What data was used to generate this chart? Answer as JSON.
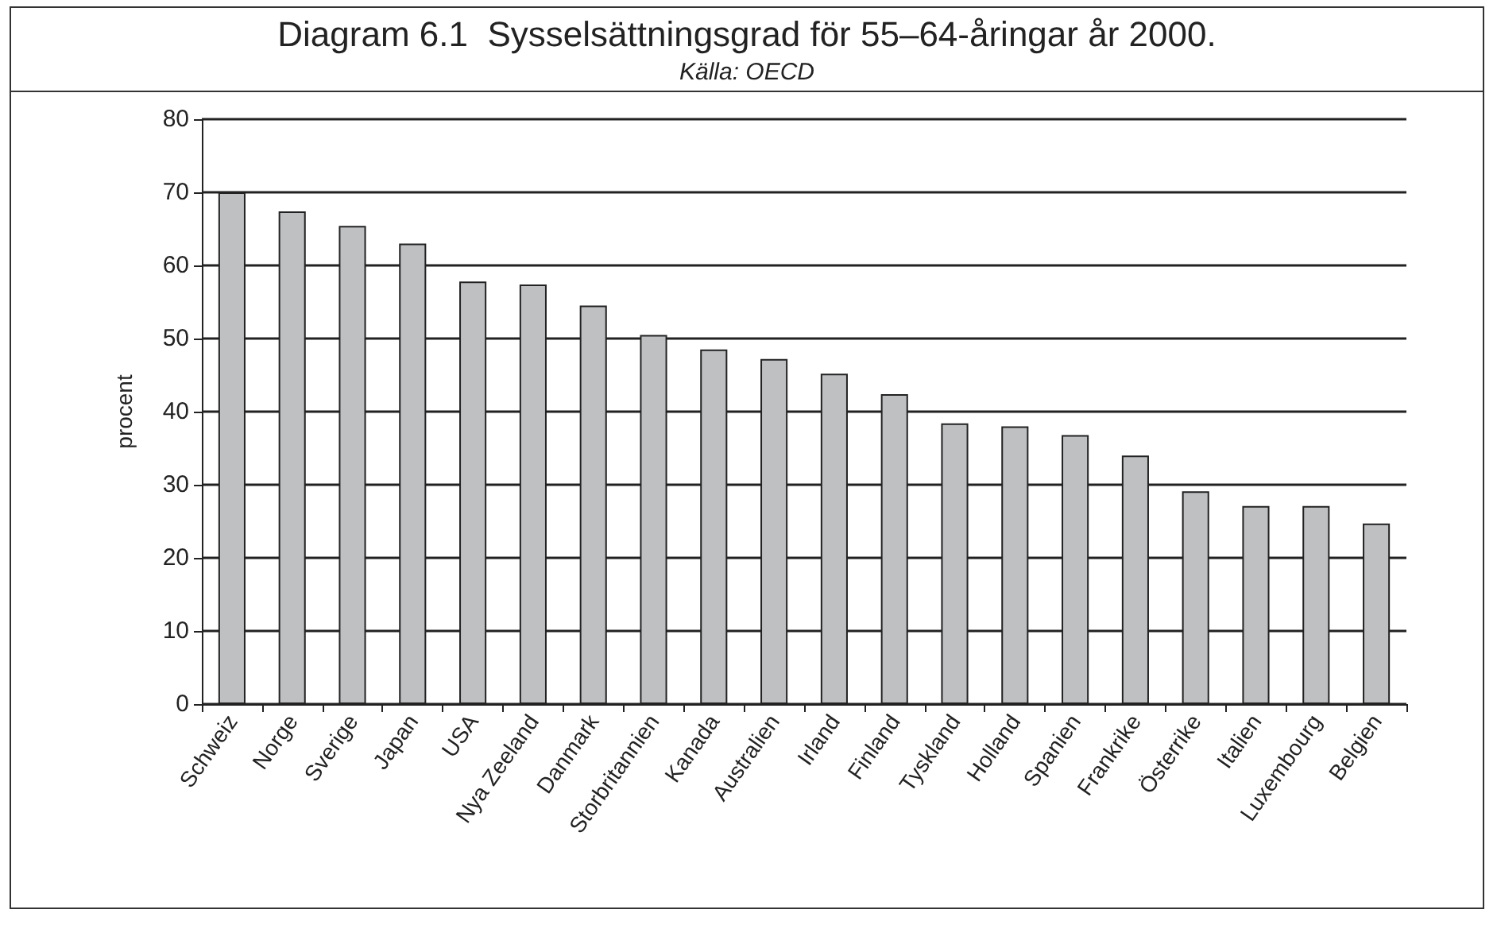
{
  "chart_data": {
    "type": "bar",
    "title": "Diagram 6.1  Sysselsättningsgrad för 55–64-åringar år 2000.",
    "subtitle": "Källa: OECD",
    "ylabel": "procent",
    "categories": [
      "Schweiz",
      "Norge",
      "Sverige",
      "Japan",
      "USA",
      "Nya Zeeland",
      "Danmark",
      "Storbritannien",
      "Kanada",
      "Australien",
      "Irland",
      "Finland",
      "Tyskland",
      "Holland",
      "Spanien",
      "Frankrike",
      "Österrike",
      "Italien",
      "Luxembourg",
      "Belgien"
    ],
    "values": [
      70,
      67.4,
      65.4,
      63.0,
      57.8,
      57.4,
      54.5,
      50.5,
      48.5,
      47.2,
      45.2,
      42.4,
      38.4,
      38.0,
      36.8,
      34.0,
      29.1,
      27.1,
      27.1,
      24.7
    ],
    "color": "#bfc0c2",
    "ylim": [
      0,
      80
    ],
    "yticks": [
      0,
      10,
      20,
      30,
      40,
      50,
      60,
      70,
      80
    ],
    "grid": "y"
  }
}
